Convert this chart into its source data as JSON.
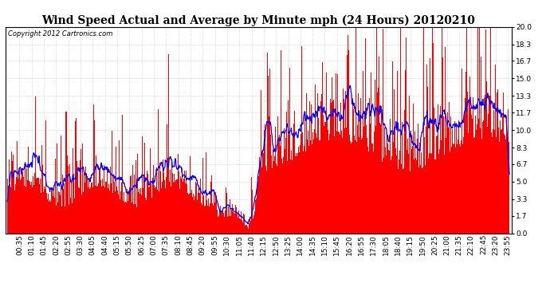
{
  "title": "Wind Speed Actual and Average by Minute mph (24 Hours) 20120210",
  "copyright_text": "Copyright 2012 Cartronics.com",
  "ylim": [
    0.0,
    20.0
  ],
  "yticks": [
    0.0,
    1.7,
    3.3,
    5.0,
    6.7,
    8.3,
    10.0,
    11.7,
    13.3,
    15.0,
    16.7,
    18.3,
    20.0
  ],
  "bar_color": "#FF0000",
  "line_color": "#0000FF",
  "background_color": "#FFFFFF",
  "grid_color": "#AAAAAA",
  "title_fontsize": 10,
  "copyright_fontsize": 6,
  "tick_label_fontsize": 6.5,
  "xtick_step_minutes": 35,
  "n_minutes": 1440,
  "avg_window": 20
}
